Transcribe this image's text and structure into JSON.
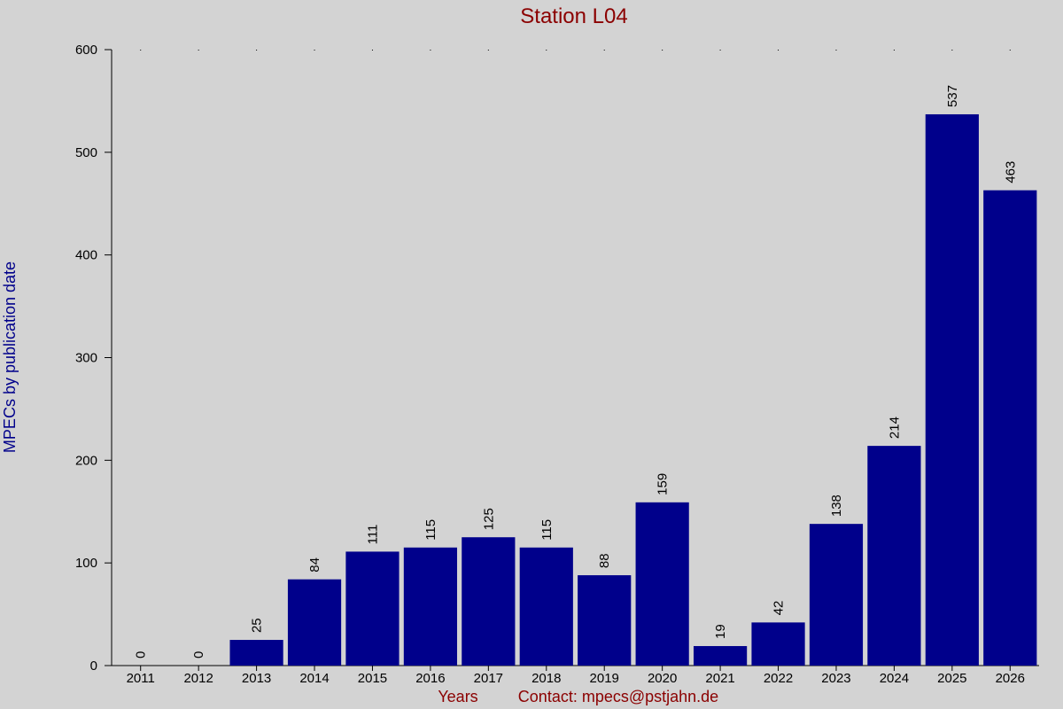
{
  "chart_data": {
    "type": "bar",
    "title": "Station L04",
    "xlabel": "Years",
    "ylabel": "MPECs by publication date",
    "footer": "Contact: mpecs@pstjahn.de",
    "categories": [
      "2011",
      "2012",
      "2013",
      "2014",
      "2015",
      "2016",
      "2017",
      "2018",
      "2019",
      "2020",
      "2021",
      "2022",
      "2023",
      "2024",
      "2025",
      "2026"
    ],
    "values": [
      0,
      0,
      25,
      84,
      111,
      115,
      125,
      115,
      88,
      159,
      19,
      42,
      138,
      214,
      537,
      463
    ],
    "ylim": [
      0,
      600
    ],
    "yticks": [
      0,
      100,
      200,
      300,
      400,
      500,
      600
    ],
    "grid": false,
    "colors": {
      "bar": "#00008b",
      "title": "#8b0000",
      "ylabel": "#00008b",
      "xlabel": "#8b0000",
      "footer": "#8b0000",
      "axis": "#000000",
      "text": "#000000"
    }
  }
}
